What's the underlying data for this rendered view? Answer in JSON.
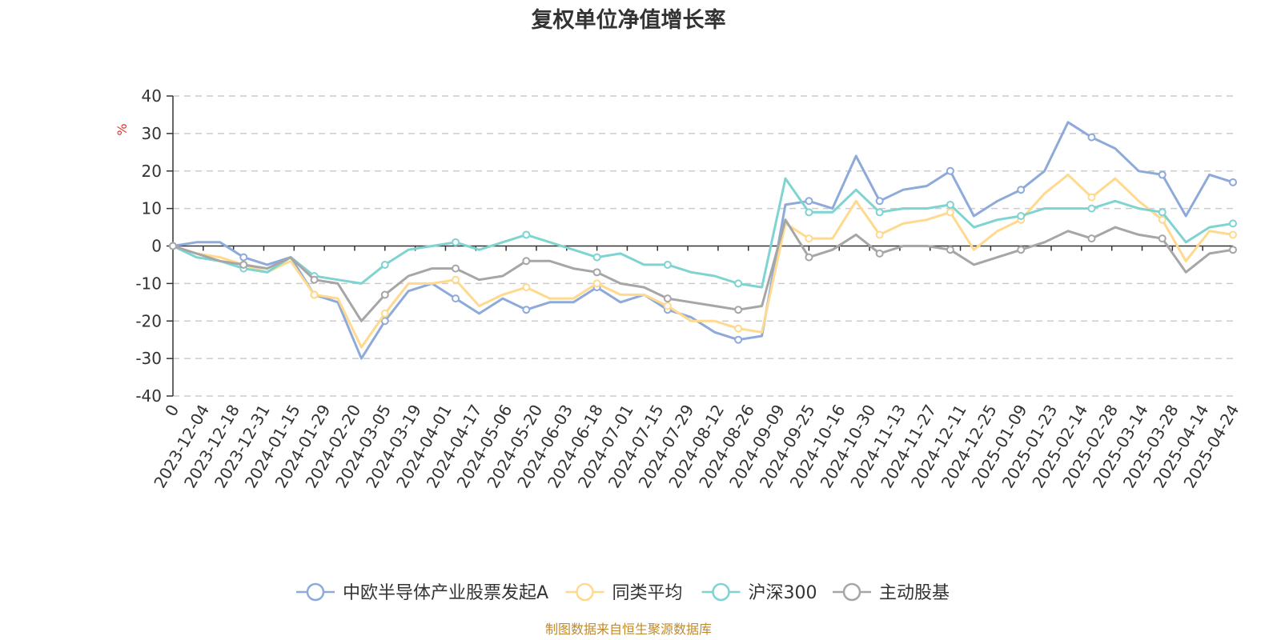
{
  "chart_data": {
    "type": "line",
    "title": "复权单位净值增长率",
    "ylabel": "%",
    "ylim": [
      -40,
      40
    ],
    "yticks": [
      "-40",
      "-30",
      "-20",
      "-10",
      "0",
      "10",
      "20",
      "30",
      "40"
    ],
    "x_start_label": "0",
    "x_labels": [
      "2023-12-04",
      "2023-12-18",
      "2023-12-31",
      "2024-01-15",
      "2024-01-29",
      "2024-02-20",
      "2024-03-05",
      "2024-03-19",
      "2024-04-01",
      "2024-04-17",
      "2024-05-06",
      "2024-05-20",
      "2024-06-03",
      "2024-06-18",
      "2024-07-01",
      "2024-07-15",
      "2024-07-29",
      "2024-08-12",
      "2024-08-26",
      "2024-09-09",
      "2024-09-25",
      "2024-10-16",
      "2024-10-30",
      "2024-11-13",
      "2024-11-27",
      "2024-12-11",
      "2024-12-25",
      "2025-01-09",
      "2025-01-23",
      "2025-02-14",
      "2025-02-28",
      "2025-03-14",
      "2025-03-28",
      "2025-04-14",
      "2025-04-24"
    ],
    "grid": true,
    "legend_position": "bottom",
    "series": [
      {
        "name": "中欧半导体产业股票发起A",
        "color": "#8eaadb",
        "values": [
          0,
          1,
          1,
          -3,
          -5,
          -3,
          -13,
          -15,
          -30,
          -20,
          -12,
          -10,
          -14,
          -18,
          -14,
          -17,
          -15,
          -15,
          -11,
          -15,
          -13,
          -17,
          -19,
          -23,
          -25,
          -24,
          11,
          12,
          10,
          24,
          12,
          15,
          16,
          20,
          8,
          12,
          15,
          20,
          33,
          29,
          26,
          20,
          19,
          8,
          19,
          17
        ]
      },
      {
        "name": "同类平均",
        "color": "#ffd98e",
        "values": [
          0,
          -2,
          -3,
          -5,
          -7,
          -4,
          -13,
          -14,
          -27,
          -18,
          -10,
          -10,
          -9,
          -16,
          -13,
          -11,
          -14,
          -14,
          -10,
          -13,
          -13,
          -16,
          -20,
          -20,
          -22,
          -23,
          6,
          2,
          2,
          12,
          3,
          6,
          7,
          9,
          -1,
          4,
          7,
          14,
          19,
          13,
          18,
          12,
          7,
          -4,
          4,
          3
        ]
      },
      {
        "name": "沪深300",
        "color": "#7fd4d2",
        "values": [
          0,
          -3,
          -4,
          -6,
          -7,
          -3,
          -8,
          -9,
          -10,
          -5,
          -1,
          0,
          1,
          -1,
          1,
          3,
          1,
          -1,
          -3,
          -2,
          -5,
          -5,
          -7,
          -8,
          -10,
          -11,
          18,
          9,
          9,
          15,
          9,
          10,
          10,
          11,
          5,
          7,
          8,
          10,
          10,
          10,
          12,
          10,
          9,
          1,
          5,
          6
        ]
      },
      {
        "name": "主动股基",
        "color": "#a6a6a6",
        "values": [
          0,
          -2,
          -4,
          -5,
          -6,
          -3,
          -9,
          -10,
          -20,
          -13,
          -8,
          -6,
          -6,
          -9,
          -8,
          -4,
          -4,
          -6,
          -7,
          -10,
          -11,
          -14,
          -15,
          -16,
          -17,
          -16,
          7,
          -3,
          -1,
          3,
          -2,
          0,
          0,
          -1,
          -5,
          -3,
          -1,
          1,
          4,
          2,
          5,
          3,
          2,
          -7,
          -2,
          -1
        ]
      }
    ]
  },
  "source_text": "制图数据来自恒生聚源数据库"
}
